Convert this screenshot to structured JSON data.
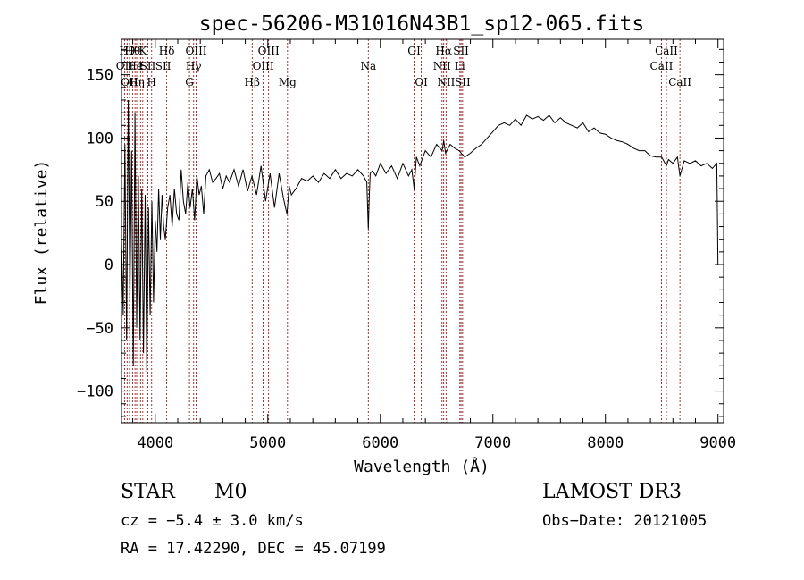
{
  "chart_data": {
    "type": "line",
    "title": "spec-56206-M31016N43B1_sp12-065.fits",
    "xlabel": "Wavelength (Å)",
    "ylabel": "Flux (relative)",
    "xlim": [
      3700,
      9050
    ],
    "ylim": [
      -125,
      178
    ],
    "xticks": [
      {
        "value": 4000,
        "label": "4000"
      },
      {
        "value": 5000,
        "label": "5000"
      },
      {
        "value": 6000,
        "label": "6000"
      },
      {
        "value": 7000,
        "label": "7000"
      },
      {
        "value": 8000,
        "label": "8000"
      },
      {
        "value": 9000,
        "label": "9000"
      }
    ],
    "yticks": [
      {
        "value": 150,
        "label": "150"
      },
      {
        "value": 100,
        "label": "100"
      },
      {
        "value": 50,
        "label": "50"
      },
      {
        "value": 0,
        "label": "0"
      },
      {
        "value": -50,
        "label": "−50"
      },
      {
        "value": -100,
        "label": "−100"
      }
    ],
    "line_color": "#000000",
    "marker_color": "#8b0000",
    "series": [
      {
        "name": "flux",
        "x": [
          3700,
          3715,
          3730,
          3745,
          3760,
          3775,
          3790,
          3805,
          3820,
          3835,
          3850,
          3865,
          3880,
          3895,
          3910,
          3925,
          3940,
          3955,
          3970,
          3985,
          4000,
          4015,
          4030,
          4045,
          4060,
          4075,
          4090,
          4110,
          4130,
          4150,
          4170,
          4190,
          4210,
          4230,
          4250,
          4270,
          4290,
          4310,
          4330,
          4350,
          4370,
          4390,
          4410,
          4430,
          4450,
          4480,
          4510,
          4540,
          4570,
          4600,
          4630,
          4660,
          4700,
          4740,
          4780,
          4820,
          4860,
          4900,
          4940,
          4980,
          5020,
          5060,
          5100,
          5140,
          5170,
          5190,
          5210,
          5250,
          5300,
          5350,
          5400,
          5450,
          5500,
          5550,
          5600,
          5650,
          5700,
          5750,
          5800,
          5850,
          5880,
          5893,
          5900,
          5910,
          5930,
          5960,
          6000,
          6050,
          6100,
          6150,
          6200,
          6250,
          6280,
          6300,
          6320,
          6350,
          6400,
          6450,
          6500,
          6550,
          6563,
          6580,
          6620,
          6660,
          6700,
          6750,
          6800,
          6850,
          6900,
          6950,
          7000,
          7050,
          7100,
          7150,
          7200,
          7250,
          7300,
          7350,
          7400,
          7450,
          7500,
          7550,
          7600,
          7650,
          7700,
          7750,
          7800,
          7850,
          7900,
          7950,
          8000,
          8050,
          8100,
          8150,
          8200,
          8250,
          8300,
          8350,
          8400,
          8450,
          8500,
          8542,
          8560,
          8600,
          8640,
          8662,
          8700,
          8750,
          8800,
          8850,
          8900,
          8950,
          8990,
          9000
        ],
        "values": [
          20,
          -40,
          95,
          -60,
          130,
          -30,
          90,
          -80,
          120,
          -50,
          70,
          -60,
          60,
          -70,
          55,
          -85,
          45,
          -40,
          50,
          -30,
          35,
          10,
          60,
          20,
          55,
          30,
          20,
          45,
          55,
          30,
          60,
          40,
          35,
          75,
          50,
          40,
          65,
          45,
          60,
          35,
          70,
          55,
          62,
          40,
          70,
          75,
          65,
          68,
          72,
          60,
          70,
          65,
          75,
          62,
          75,
          58,
          70,
          55,
          78,
          50,
          72,
          45,
          72,
          52,
          40,
          62,
          55,
          60,
          68,
          66,
          70,
          65,
          72,
          68,
          75,
          68,
          72,
          70,
          75,
          70,
          65,
          28,
          50,
          72,
          74,
          70,
          80,
          72,
          78,
          68,
          80,
          70,
          75,
          60,
          85,
          78,
          90,
          85,
          95,
          90,
          98,
          88,
          95,
          92,
          90,
          85,
          88,
          92,
          95,
          100,
          105,
          110,
          112,
          110,
          115,
          110,
          118,
          115,
          117,
          114,
          118,
          112,
          116,
          112,
          110,
          108,
          112,
          105,
          108,
          104,
          103,
          100,
          98,
          97,
          95,
          92,
          90,
          90,
          86,
          85,
          85,
          78,
          83,
          80,
          85,
          70,
          82,
          80,
          82,
          78,
          80,
          76,
          80,
          0
        ]
      }
    ],
    "lines": [
      {
        "wave": 3727,
        "row": 1,
        "label": "OII"
      },
      {
        "wave": 3750,
        "row": 0,
        "label": "Hθ"
      },
      {
        "wave": 3771,
        "row": 2,
        "label": "OII"
      },
      {
        "wave": 3798,
        "row": 0,
        "label": "Hθ"
      },
      {
        "wave": 3820,
        "row": 1,
        "label": "He"
      },
      {
        "wave": 3835,
        "row": 2,
        "label": "Hη"
      },
      {
        "wave": 3869,
        "row": 1,
        "label": "I"
      },
      {
        "wave": 3889,
        "row": 0,
        "label": "K"
      },
      {
        "wave": 3934,
        "row": 1,
        "label": "SII"
      },
      {
        "wave": 3968,
        "row": 2,
        "label": "H"
      },
      {
        "wave": 4102,
        "row": 0,
        "label": "Hδ"
      },
      {
        "wave": 4070,
        "row": 1,
        "label": "SII"
      },
      {
        "wave": 4304,
        "row": 2,
        "label": "G"
      },
      {
        "wave": 4341,
        "row": 1,
        "label": "Hγ"
      },
      {
        "wave": 4363,
        "row": 0,
        "label": "OIII"
      },
      {
        "wave": 4861,
        "row": 2,
        "label": "Hβ"
      },
      {
        "wave": 4959,
        "row": 1,
        "label": "OIII"
      },
      {
        "wave": 5007,
        "row": 0,
        "label": "OIII"
      },
      {
        "wave": 5175,
        "row": 2,
        "label": "Mg"
      },
      {
        "wave": 5893,
        "row": 1,
        "label": "Na"
      },
      {
        "wave": 6300,
        "row": 0,
        "label": "OI"
      },
      {
        "wave": 6364,
        "row": 2,
        "label": "OI"
      },
      {
        "wave": 6548,
        "row": 1,
        "label": "NII"
      },
      {
        "wave": 6563,
        "row": 0,
        "label": "Hα"
      },
      {
        "wave": 6584,
        "row": 2,
        "label": "NII"
      },
      {
        "wave": 6707,
        "row": 1,
        "label": "Li"
      },
      {
        "wave": 6717,
        "row": 0,
        "label": "SII"
      },
      {
        "wave": 6731,
        "row": 2,
        "label": "SII"
      },
      {
        "wave": 8498,
        "row": 1,
        "label": "CaII"
      },
      {
        "wave": 8542,
        "row": 0,
        "label": "CaII"
      },
      {
        "wave": 8662,
        "row": 2,
        "label": "CaII"
      }
    ]
  },
  "info": {
    "object_class": "STAR",
    "subclass": "M0",
    "survey": "LAMOST DR3",
    "cz": "cz = −5.4 ± 3.0 km/s",
    "obs_date": "Obs−Date: 20121005",
    "coords": "RA =  17.42290, DEC =  45.07199"
  }
}
